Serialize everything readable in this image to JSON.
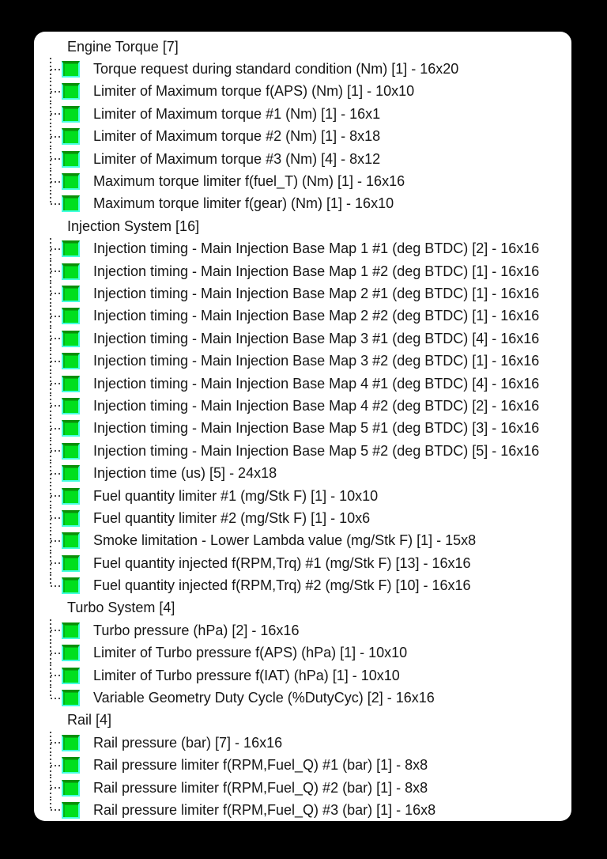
{
  "background_color": "#000000",
  "panel": {
    "background_color": "#ffffff",
    "text_color": "#161616",
    "tree_line_color": "#4a4a4a",
    "map_icon": {
      "name": "map-icon",
      "fill_color": "#00df1e",
      "top_edge_color": "#0b8f07",
      "outline_color": "#45ffdf"
    },
    "sections": [
      {
        "label": "Engine Torque [7]",
        "items": [
          {
            "label": "Torque request during standard condition (Nm) [1] - 16x20"
          },
          {
            "label": "Limiter of Maximum torque f(APS) (Nm) [1] - 10x10"
          },
          {
            "label": "Limiter of Maximum torque #1 (Nm) [1] - 16x1"
          },
          {
            "label": "Limiter of Maximum torque #2 (Nm) [1] - 8x18"
          },
          {
            "label": "Limiter of Maximum torque #3 (Nm) [4] - 8x12"
          },
          {
            "label": "Maximum torque limiter f(fuel_T) (Nm) [1] - 16x16"
          },
          {
            "label": "Maximum torque limiter f(gear) (Nm) [1] - 16x10"
          }
        ]
      },
      {
        "label": "Injection System [16]",
        "items": [
          {
            "label": "Injection timing - Main Injection Base Map 1 #1 (deg BTDC) [2] - 16x16"
          },
          {
            "label": "Injection timing - Main Injection Base Map 1 #2 (deg BTDC) [1] - 16x16"
          },
          {
            "label": "Injection timing - Main Injection Base Map 2 #1 (deg BTDC) [1] - 16x16"
          },
          {
            "label": "Injection timing - Main Injection Base Map 2 #2 (deg BTDC) [1] - 16x16"
          },
          {
            "label": "Injection timing - Main Injection Base Map 3 #1 (deg BTDC) [4] - 16x16"
          },
          {
            "label": "Injection timing - Main Injection Base Map 3 #2 (deg BTDC) [1] - 16x16"
          },
          {
            "label": "Injection timing - Main Injection Base Map 4 #1 (deg BTDC) [4] - 16x16"
          },
          {
            "label": "Injection timing - Main Injection Base Map 4 #2 (deg BTDC) [2] - 16x16"
          },
          {
            "label": "Injection timing - Main Injection Base Map 5 #1 (deg BTDC) [3] - 16x16"
          },
          {
            "label": "Injection timing - Main Injection Base Map 5 #2 (deg BTDC) [5] - 16x16"
          },
          {
            "label": "Injection time (us) [5] - 24x18"
          },
          {
            "label": "Fuel quantity limiter #1 (mg/Stk F) [1] - 10x10"
          },
          {
            "label": "Fuel quantity limiter #2 (mg/Stk F) [1] - 10x6"
          },
          {
            "label": "Smoke limitation - Lower Lambda value (mg/Stk F) [1] - 15x8"
          },
          {
            "label": "Fuel quantity injected f(RPM,Trq) #1 (mg/Stk F) [13] - 16x16"
          },
          {
            "label": "Fuel quantity injected f(RPM,Trq) #2 (mg/Stk F) [10] - 16x16"
          }
        ]
      },
      {
        "label": "Turbo System [4]",
        "items": [
          {
            "label": "Turbo pressure (hPa) [2] - 16x16"
          },
          {
            "label": "Limiter of Turbo pressure f(APS) (hPa) [1] - 10x10"
          },
          {
            "label": "Limiter of Turbo pressure f(IAT) (hPa) [1] - 10x10"
          },
          {
            "label": "Variable Geometry Duty Cycle (%DutyCyc) [2] - 16x16"
          }
        ]
      },
      {
        "label": "Rail [4]",
        "items": [
          {
            "label": "Rail pressure (bar) [7] - 16x16"
          },
          {
            "label": "Rail pressure limiter f(RPM,Fuel_Q) #1 (bar) [1] - 8x8"
          },
          {
            "label": "Rail pressure limiter f(RPM,Fuel_Q) #2 (bar) [1] - 8x8"
          },
          {
            "label": "Rail pressure limiter f(RPM,Fuel_Q) #3 (bar) [1] - 16x8"
          }
        ]
      }
    ]
  }
}
